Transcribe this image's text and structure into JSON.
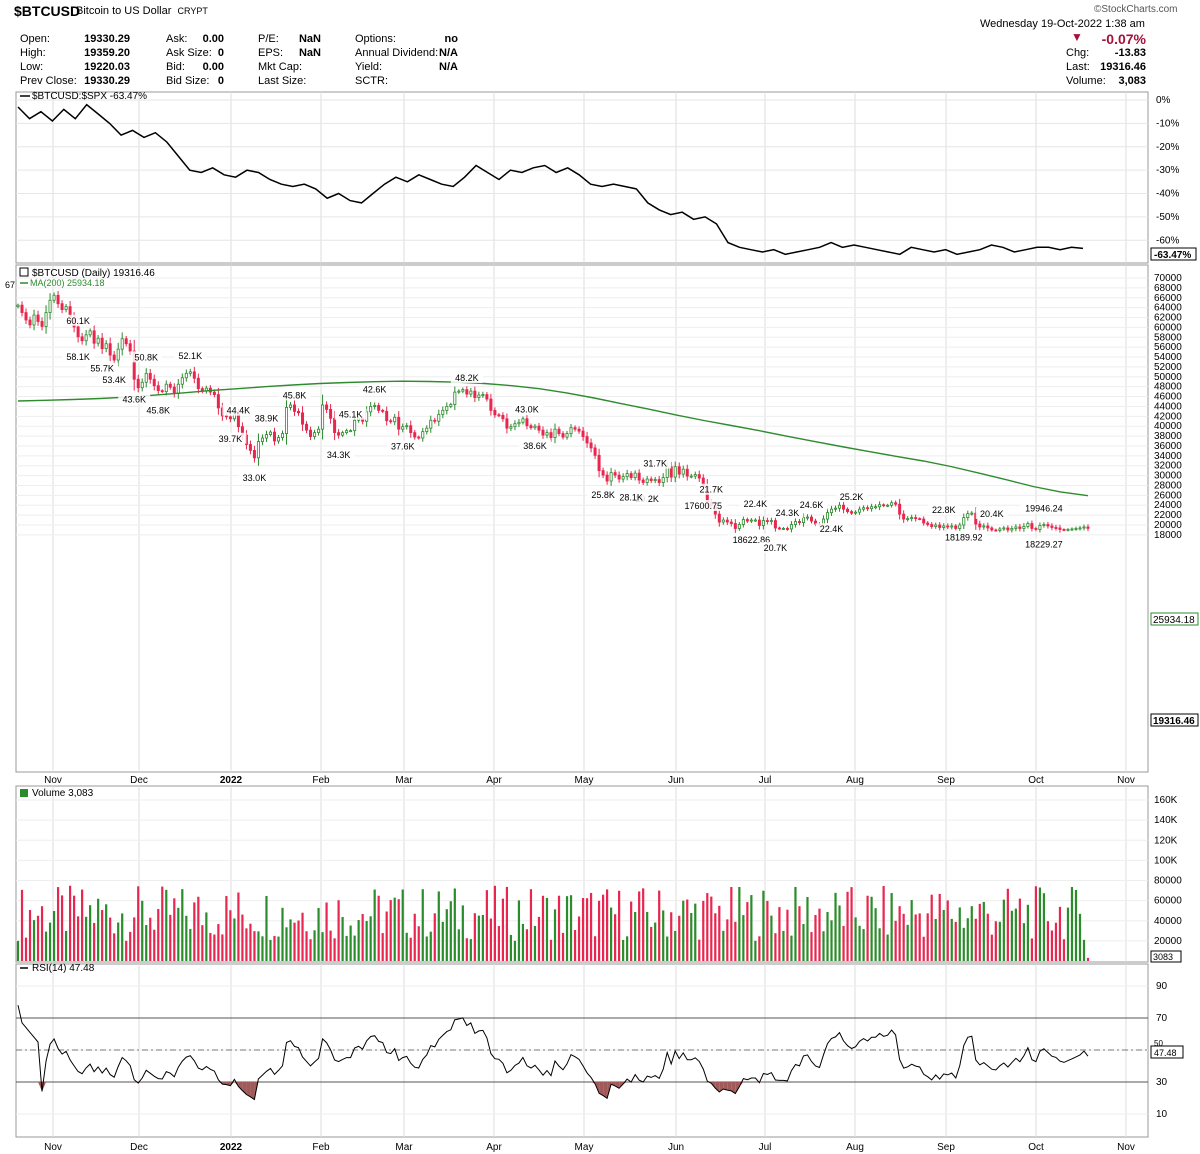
{
  "header": {
    "symbol": "$BTCUSD",
    "name": "Bitcoin to US Dollar",
    "exchange": "CRYPT",
    "watermark": "©StockCharts.com",
    "datetime": "Wednesday  19-Oct-2022  1:38 am",
    "change_pct": "-0.07%",
    "quote_rows": [
      [
        {
          "label": "Open:",
          "value": "19330.29"
        },
        {
          "label": "Ask:",
          "value": "0.00"
        },
        {
          "label": "P/E:",
          "value": "NaN"
        },
        {
          "label": "Options:",
          "value": "no"
        }
      ],
      [
        {
          "label": "High:",
          "value": "19359.20"
        },
        {
          "label": "Ask Size:",
          "value": "0"
        },
        {
          "label": "EPS:",
          "value": "NaN"
        },
        {
          "label": "Annual Dividend:",
          "value": "N/A"
        }
      ],
      [
        {
          "label": "Low:",
          "value": "19220.03"
        },
        {
          "label": "Bid:",
          "value": "0.00"
        },
        {
          "label": "Mkt Cap:",
          "value": ""
        },
        {
          "label": "Yield:",
          "value": "N/A"
        }
      ],
      [
        {
          "label": "Prev Close:",
          "value": "19330.29"
        },
        {
          "label": "Bid Size:",
          "value": "0"
        },
        {
          "label": "Last Size:",
          "value": ""
        },
        {
          "label": "SCTR:",
          "value": ""
        }
      ]
    ],
    "right_rows": [
      {
        "label": "Chg:",
        "value": "-13.83"
      },
      {
        "label": "Last:",
        "value": "19316.46"
      },
      {
        "label": "Volume:",
        "value": "3,083"
      }
    ]
  },
  "chart_data": {
    "type": "line",
    "x_tick_labels": [
      "Nov",
      "Dec",
      "2022",
      "Feb",
      "Mar",
      "Apr",
      "May",
      "Jun",
      "Jul",
      "Aug",
      "Sep",
      "Oct",
      "Nov"
    ],
    "panels": {
      "relative": {
        "legend": "$BTCUSD:$SPX -63.47%",
        "current_label": "-63.47%",
        "y_ticks": [
          "0%",
          "-10%",
          "-20%",
          "-30%",
          "-40%",
          "-50%",
          "-60%"
        ],
        "ylim": [
          -65,
          0
        ],
        "values": [
          -3,
          -8,
          -5,
          -9,
          -4,
          -8,
          -2,
          -6,
          -10,
          -15,
          -13,
          -16,
          -14,
          -18,
          -24,
          -30,
          -31,
          -29,
          -32,
          -33,
          -30,
          -31,
          -34,
          -36,
          -37,
          -36,
          -38,
          -42,
          -40,
          -43,
          -44,
          -40,
          -36,
          -33,
          -35,
          -32,
          -34,
          -36,
          -37,
          -33,
          -28,
          -31,
          -34,
          -30,
          -31,
          -29,
          -28,
          -31,
          -29,
          -32,
          -36,
          -37,
          -36,
          -37,
          -38,
          -44,
          -47,
          -49,
          -48,
          -51,
          -50,
          -53,
          -61,
          -63,
          -64,
          -65,
          -64,
          -66,
          -65,
          -64,
          -63,
          -61,
          -63,
          -62,
          -63,
          -64,
          -65,
          -66,
          -63,
          -64,
          -65,
          -64,
          -66,
          -65,
          -64,
          -62,
          -63,
          -65,
          -64,
          -63,
          -63,
          -64,
          -63,
          -63.47
        ]
      },
      "price": {
        "legend": "$BTCUSD (Daily) 19316.46",
        "ma_legend": "MA(200) 25934.18",
        "ma_label": "25934.18",
        "last_label": "19316.46",
        "edge_label": "67",
        "y_ticks": [
          "70000",
          "68000",
          "66000",
          "64000",
          "62000",
          "60000",
          "58000",
          "56000",
          "54000",
          "52000",
          "50000",
          "48000",
          "46000",
          "44000",
          "42000",
          "40000",
          "38000",
          "36000",
          "34000",
          "32000",
          "30000",
          "28000",
          "26000",
          "24000",
          "22000",
          "20000",
          "18000"
        ],
        "ylim": [
          16600,
          71000
        ],
        "close": [
          64500,
          63000,
          61500,
          60500,
          62500,
          61200,
          60200,
          63000,
          65500,
          66500,
          64800,
          63600,
          64200,
          62000,
          60100,
          58100,
          57300,
          58500,
          59300,
          56800,
          57800,
          55700,
          56700,
          54400,
          53400,
          55600,
          57700,
          56700,
          55200,
          49500,
          47800,
          48900,
          50700,
          49500,
          48200,
          47200,
          47000,
          48500,
          47900,
          46600,
          48500,
          49800,
          50700,
          51000,
          49700,
          47600,
          47100,
          47700,
          46900,
          46400,
          43700,
          42100,
          41900,
          41500,
          42400,
          39900,
          38200,
          36300,
          35100,
          33600,
          36900,
          37600,
          38300,
          38800,
          37000,
          37700,
          38500,
          43800,
          44300,
          43000,
          42700,
          40400,
          39200,
          37900,
          38700,
          39400,
          44300,
          43400,
          41600,
          38700,
          38200,
          38700,
          39100,
          39100,
          41200,
          41600,
          41000,
          42900,
          44000,
          44200,
          43200,
          43000,
          41100,
          40900,
          41800,
          39400,
          39900,
          40100,
          38700,
          37800,
          37600,
          38900,
          39600,
          41200,
          41000,
          42400,
          43200,
          44000,
          44400,
          46900,
          47100,
          47400,
          46500,
          47100,
          45800,
          46300,
          46400,
          45500,
          43200,
          42300,
          42200,
          41500,
          39600,
          39900,
          40500,
          40800,
          41500,
          40100,
          39700,
          40000,
          39200,
          38200,
          38700,
          37700,
          39400,
          38500,
          37800,
          38500,
          39700,
          39400,
          39000,
          37900,
          36600,
          35600,
          34100,
          31000,
          30100,
          28900,
          30600,
          30100,
          29300,
          29800,
          30400,
          29600,
          30500,
          29100,
          28600,
          29300,
          29000,
          29200,
          28600,
          29600,
          31800,
          29700,
          31800,
          30300,
          31300,
          29900,
          29900,
          30200,
          29500,
          27900,
          24600,
          23900,
          22200,
          20600,
          21000,
          20600,
          20300,
          19300,
          20100,
          21100,
          20800,
          21000,
          21000,
          19900,
          20900,
          20700,
          20900,
          19400,
          19300,
          19300,
          19200,
          20100,
          20700,
          20500,
          21500,
          21600,
          20800,
          20200,
          20000,
          21200,
          22500,
          23200,
          23400,
          24000,
          23200,
          22700,
          22400,
          22600,
          23200,
          23500,
          23300,
          23700,
          23700,
          24100,
          23900,
          24000,
          24500,
          24200,
          22200,
          21200,
          21300,
          21500,
          21300,
          21200,
          20400,
          20100,
          19700,
          20000,
          19500,
          19800,
          19700,
          19800,
          19300,
          20000,
          21500,
          22300,
          22400,
          20200,
          19600,
          19800,
          19400,
          19000,
          18900,
          19200,
          19400,
          19000,
          19300,
          19600,
          19300,
          19700,
          20300,
          19300,
          19100,
          19900,
          20100,
          19800,
          19500,
          19400,
          19100,
          19000,
          19100,
          19200,
          19300,
          19400,
          19600,
          19316
        ],
        "ma200": [
          45100,
          45250,
          45400,
          45600,
          45900,
          46300,
          46750,
          47200,
          47600,
          48000,
          48350,
          48650,
          48850,
          49000,
          49100,
          49050,
          48900,
          48650,
          48200,
          47600,
          46750,
          45700,
          44550,
          43450,
          42250,
          41150,
          40150,
          39100,
          38000,
          36950,
          35900,
          34900,
          33900,
          32950,
          31850,
          30550,
          29200,
          27800,
          26700,
          25934
        ],
        "annotations": [
          {
            "label": "58.1K",
            "i": 15,
            "low": true
          },
          {
            "label": "60.1K",
            "i": 15,
            "low": false
          },
          {
            "label": "55.7K",
            "i": 21,
            "low": true
          },
          {
            "label": "53.4K",
            "i": 24,
            "low": true
          },
          {
            "label": "50.8K",
            "i": 32,
            "low": false
          },
          {
            "label": "45.8K",
            "i": 35,
            "low": true
          },
          {
            "label": "43.6K",
            "i": 29,
            "low": true
          },
          {
            "label": "52.1K",
            "i": 43,
            "low": false
          },
          {
            "label": "44.4K",
            "i": 55,
            "low": false
          },
          {
            "label": "39.7K",
            "i": 53,
            "low": true
          },
          {
            "label": "38.9K",
            "i": 62,
            "low": false
          },
          {
            "label": "33.0K",
            "i": 59,
            "low": true
          },
          {
            "label": "45.8K",
            "i": 69,
            "low": false
          },
          {
            "label": "34.3K",
            "i": 80,
            "low": true
          },
          {
            "label": "45.1K",
            "i": 83,
            "low": false
          },
          {
            "label": "42.6K",
            "i": 89,
            "low": false
          },
          {
            "label": "37.6K",
            "i": 96,
            "low": true
          },
          {
            "label": "48.2K",
            "i": 112,
            "low": false
          },
          {
            "label": "43.0K",
            "i": 127,
            "low": false
          },
          {
            "label": "38.6K",
            "i": 129,
            "low": true
          },
          {
            "label": "25.8K",
            "i": 146,
            "low": true
          },
          {
            "label": "31.7K",
            "i": 159,
            "low": false
          },
          {
            "label": "29.2K",
            "i": 157,
            "low": true
          },
          {
            "label": "28.1K",
            "i": 153,
            "low": true
          },
          {
            "label": "21.7K",
            "i": 173,
            "low": false
          },
          {
            "label": "17600.75",
            "i": 171,
            "low": true
          },
          {
            "label": "18622.86",
            "i": 183,
            "low": true
          },
          {
            "label": "22.4K",
            "i": 184,
            "low": false
          },
          {
            "label": "24.3K",
            "i": 192,
            "low": false
          },
          {
            "label": "20.7K",
            "i": 189,
            "low": true
          },
          {
            "label": "24.6K",
            "i": 198,
            "low": false
          },
          {
            "label": "22.4K",
            "i": 203,
            "low": true
          },
          {
            "label": "25.2K",
            "i": 208,
            "low": false
          },
          {
            "label": "22.8K",
            "i": 231,
            "low": false
          },
          {
            "label": "18189.92",
            "i": 236,
            "low": true
          },
          {
            "label": "20.4K",
            "i": 243,
            "low": false
          },
          {
            "label": "19946.24",
            "i": 256,
            "low": false
          },
          {
            "label": "18229.27",
            "i": 256,
            "low": true
          }
        ]
      },
      "volume": {
        "legend": "Volume 3,083",
        "last_label": "3083",
        "y_ticks": [
          "160K",
          "140K",
          "120K",
          "100K",
          "80000",
          "60000",
          "40000",
          "20000"
        ],
        "ylim": [
          0,
          170000
        ]
      },
      "rsi": {
        "legend": "RSI(14) 47.48",
        "last_label": "47.48",
        "edge_label": "50",
        "y_ticks": [
          "90",
          "70",
          "50",
          "30",
          "10"
        ],
        "ylim": [
          0,
          100
        ],
        "overbought": 70,
        "oversold": 30
      }
    }
  },
  "colors": {
    "up": "#2a8c2a",
    "down": "#e8264f",
    "ma": "#2e8b2e",
    "rsi_fill": "#a05a5a",
    "change": "#a3123c"
  }
}
